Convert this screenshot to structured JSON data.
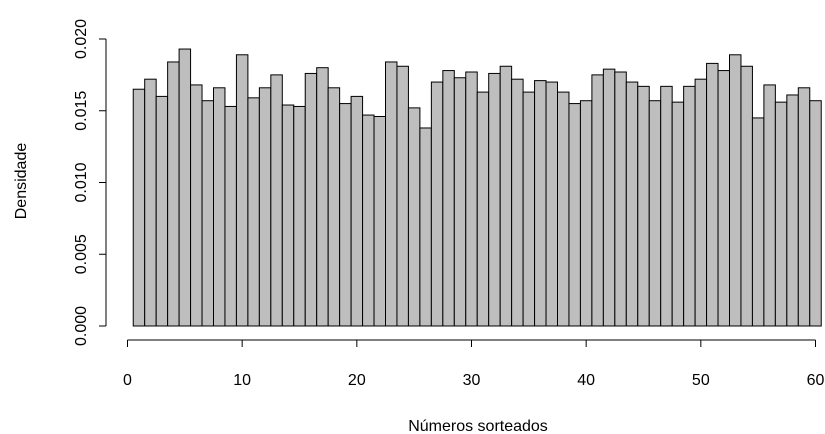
{
  "chart_data": {
    "type": "bar",
    "xlabel": "Números sorteados",
    "ylabel": "Densidade",
    "xlim": [
      0.5,
      60.5
    ],
    "ylim": [
      0,
      0.02
    ],
    "x_ticks": [
      0,
      10,
      20,
      30,
      40,
      50,
      60
    ],
    "x_tick_labels": [
      "0",
      "10",
      "20",
      "30",
      "40",
      "50",
      "60"
    ],
    "y_ticks": [
      0,
      0.005,
      0.01,
      0.015,
      0.02
    ],
    "y_tick_labels": [
      "0.000",
      "0.005",
      "0.010",
      "0.015",
      "0.020"
    ],
    "bar_color": "#bebebe",
    "border_color": "#000000",
    "bins_start": [
      0.5,
      1.5,
      2.5,
      3.5,
      4.5,
      5.5,
      6.5,
      7.5,
      8.5,
      9.5,
      10.5,
      11.5,
      12.5,
      13.5,
      14.5,
      15.5,
      16.5,
      17.5,
      18.5,
      19.5,
      20.5,
      21.5,
      22.5,
      23.5,
      24.5,
      25.5,
      26.5,
      27.5,
      28.5,
      29.5,
      30.5,
      31.5,
      32.5,
      33.5,
      34.5,
      35.5,
      36.5,
      37.5,
      38.5,
      39.5,
      40.5,
      41.5,
      42.5,
      43.5,
      44.5,
      45.5,
      46.5,
      47.5,
      48.5,
      49.5,
      50.5,
      51.5,
      52.5,
      53.5,
      54.5,
      55.5,
      56.5,
      57.5,
      58.5,
      59.5
    ],
    "bins_end": [
      1.5,
      2.5,
      3.5,
      4.5,
      5.5,
      6.5,
      7.5,
      8.5,
      9.5,
      10.5,
      11.5,
      12.5,
      13.5,
      14.5,
      15.5,
      16.5,
      17.5,
      18.5,
      19.5,
      20.5,
      21.5,
      22.5,
      23.5,
      24.5,
      25.5,
      26.5,
      27.5,
      28.5,
      29.5,
      30.5,
      31.5,
      32.5,
      33.5,
      34.5,
      35.5,
      36.5,
      37.5,
      38.5,
      39.5,
      40.5,
      41.5,
      42.5,
      43.5,
      44.5,
      45.5,
      46.5,
      47.5,
      48.5,
      49.5,
      50.5,
      51.5,
      52.5,
      53.5,
      54.5,
      55.5,
      56.5,
      57.5,
      58.5,
      59.5,
      60.5
    ],
    "values": [
      0.0165,
      0.0172,
      0.016,
      0.0184,
      0.0193,
      0.0168,
      0.0157,
      0.0166,
      0.0153,
      0.0189,
      0.0159,
      0.0166,
      0.0175,
      0.0154,
      0.0153,
      0.0176,
      0.018,
      0.0166,
      0.0155,
      0.016,
      0.0147,
      0.0146,
      0.0184,
      0.0181,
      0.0152,
      0.0138,
      0.017,
      0.0178,
      0.0173,
      0.0177,
      0.0163,
      0.0176,
      0.0181,
      0.0172,
      0.0163,
      0.0171,
      0.017,
      0.0163,
      0.0155,
      0.0157,
      0.0175,
      0.0179,
      0.0177,
      0.017,
      0.0167,
      0.0157,
      0.0167,
      0.0156,
      0.0167,
      0.0172,
      0.0183,
      0.0178,
      0.0189,
      0.0181,
      0.0145,
      0.0168,
      0.0156,
      0.0161,
      0.0166,
      0.0157
    ]
  }
}
